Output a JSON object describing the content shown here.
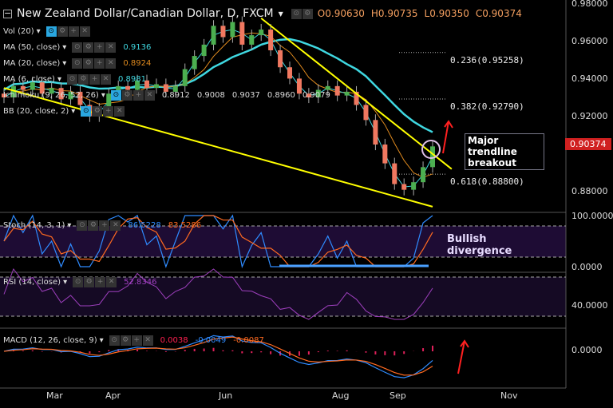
{
  "header": {
    "title": "New Zealand Dollar/Canadian Dollar, D, FXCM",
    "open": "O0.90630",
    "high": "H0.90735",
    "low": "L0.90350",
    "close": "C0.90374"
  },
  "legends": {
    "vol": "Vol (20)",
    "ma50": "MA (50, close)",
    "ma50_val": "0.9136",
    "ma20": "MA (20, close)",
    "ma20_val": "0.8924",
    "ma6": "MA (6, close)",
    "ma6_val": "0.8981",
    "ichimoku": "Ichimoku (9, 26, 52, 26)",
    "ichimoku_vals": [
      "0.8912",
      "0.9008",
      "0.9037",
      "0.8960",
      "0.9079"
    ],
    "bb": "BB (20, close, 2)",
    "stoch": "Stoch (14, 3, 1)",
    "stoch_k": "86.5228",
    "stoch_d": "83.5286",
    "rsi": "RSI (14, close)",
    "rsi_val": "52.8346",
    "macd": "MACD (12, 26, close, 9)",
    "macd_hist": "0.0038",
    "macd_line": "-0.0049",
    "macd_signal": "-0.0087"
  },
  "annotations": {
    "breakout": "Major trendline breakout",
    "divergence": "Bullish divergence",
    "fib": [
      "0.236(0.95258)",
      "0.382(0.92790)",
      "0.618(0.88800)"
    ]
  },
  "axes": {
    "price": [
      "0.98000",
      "0.96000",
      "0.94000",
      "0.92000",
      "0.88000"
    ],
    "current": "0.90374",
    "stoch": [
      "100.0000",
      "0.0000"
    ],
    "rsi": [
      "40.0000"
    ],
    "macd": [
      "0.0000"
    ],
    "months": [
      "Mar",
      "Apr",
      "Jun",
      "Aug",
      "Sep",
      "Nov"
    ]
  },
  "chart_data": {
    "type": "candlestick",
    "title": "New Zealand Dollar/Canadian Dollar, D, FXCM",
    "ylim": [
      0.87,
      0.98
    ],
    "closes": [
      0.93,
      0.936,
      0.934,
      0.938,
      0.932,
      0.935,
      0.929,
      0.933,
      0.926,
      0.92,
      0.924,
      0.932,
      0.936,
      0.934,
      0.939,
      0.935,
      0.937,
      0.933,
      0.936,
      0.945,
      0.952,
      0.958,
      0.968,
      0.962,
      0.97,
      0.958,
      0.963,
      0.966,
      0.955,
      0.946,
      0.94,
      0.932,
      0.93,
      0.934,
      0.936,
      0.931,
      0.933,
      0.926,
      0.918,
      0.905,
      0.895,
      0.884,
      0.881,
      0.885,
      0.893,
      0.904
    ],
    "fib_levels": [
      0.95258,
      0.9279,
      0.888
    ],
    "trendlines": [
      {
        "name": "upper",
        "from": [
          27,
          0.972
        ],
        "to": [
          47,
          0.892
        ]
      },
      {
        "name": "lower",
        "from": [
          0,
          0.935
        ],
        "to": [
          45,
          0.872
        ]
      }
    ],
    "colors": {
      "up": "#4caf50",
      "down": "#f07860",
      "ma50": "#3fd7e0",
      "ma20": "#e08a1e",
      "ma6": "#3fd7e0",
      "trend": "#ffff00",
      "stochK": "#2f8bff",
      "stochD": "#ff6a20",
      "rsi": "#a040c0"
    }
  }
}
